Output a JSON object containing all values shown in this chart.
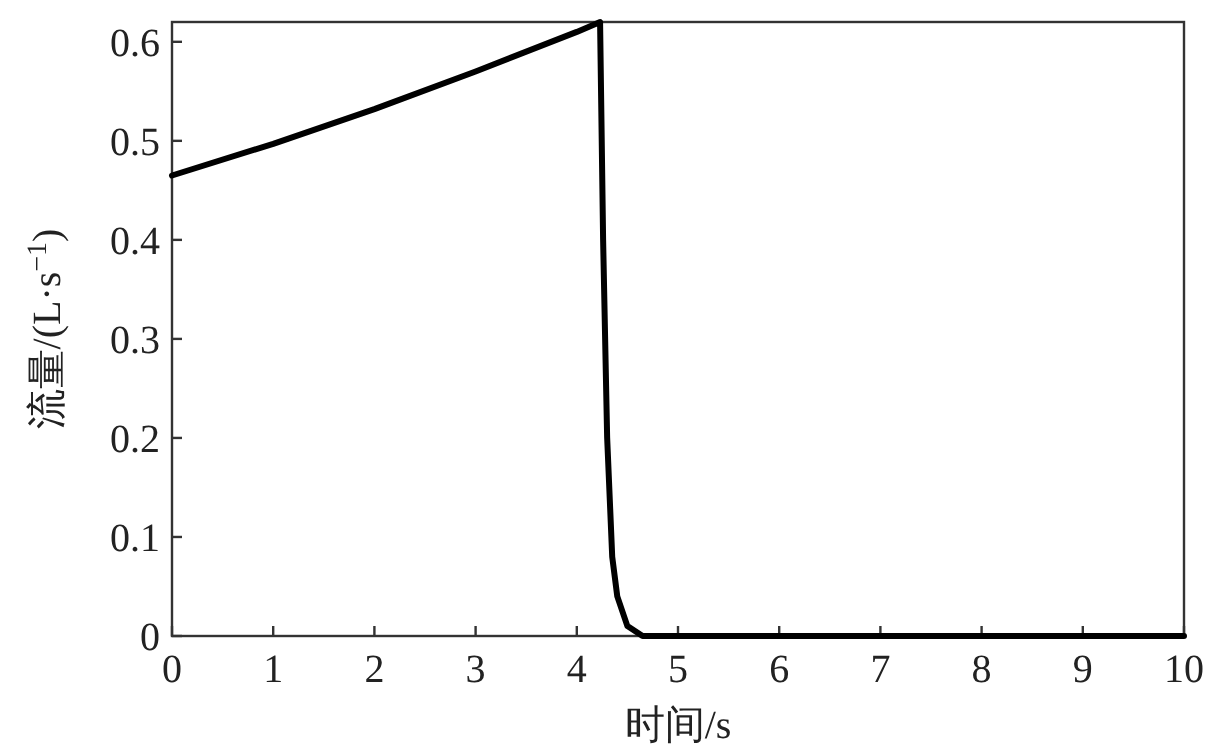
{
  "chart_data": {
    "type": "line",
    "xlabel": "时间/s",
    "ylabel": "流量/(L·s$^{−1}$)",
    "xlim": [
      0,
      10
    ],
    "ylim": [
      0,
      0.62
    ],
    "xticks": [
      0,
      1,
      2,
      3,
      4,
      5,
      6,
      7,
      8,
      9,
      10
    ],
    "yticks": [
      0,
      0.1,
      0.2,
      0.3,
      0.4,
      0.5,
      0.6
    ],
    "series": [
      {
        "color": "#000000",
        "x": [
          0,
          1,
          2,
          3,
          4,
          4.23,
          4.26,
          4.3,
          4.35,
          4.4,
          4.5,
          4.65,
          10
        ],
        "values": [
          0.465,
          0.497,
          0.532,
          0.57,
          0.61,
          0.62,
          0.4,
          0.2,
          0.08,
          0.04,
          0.01,
          0,
          0
        ]
      }
    ]
  }
}
